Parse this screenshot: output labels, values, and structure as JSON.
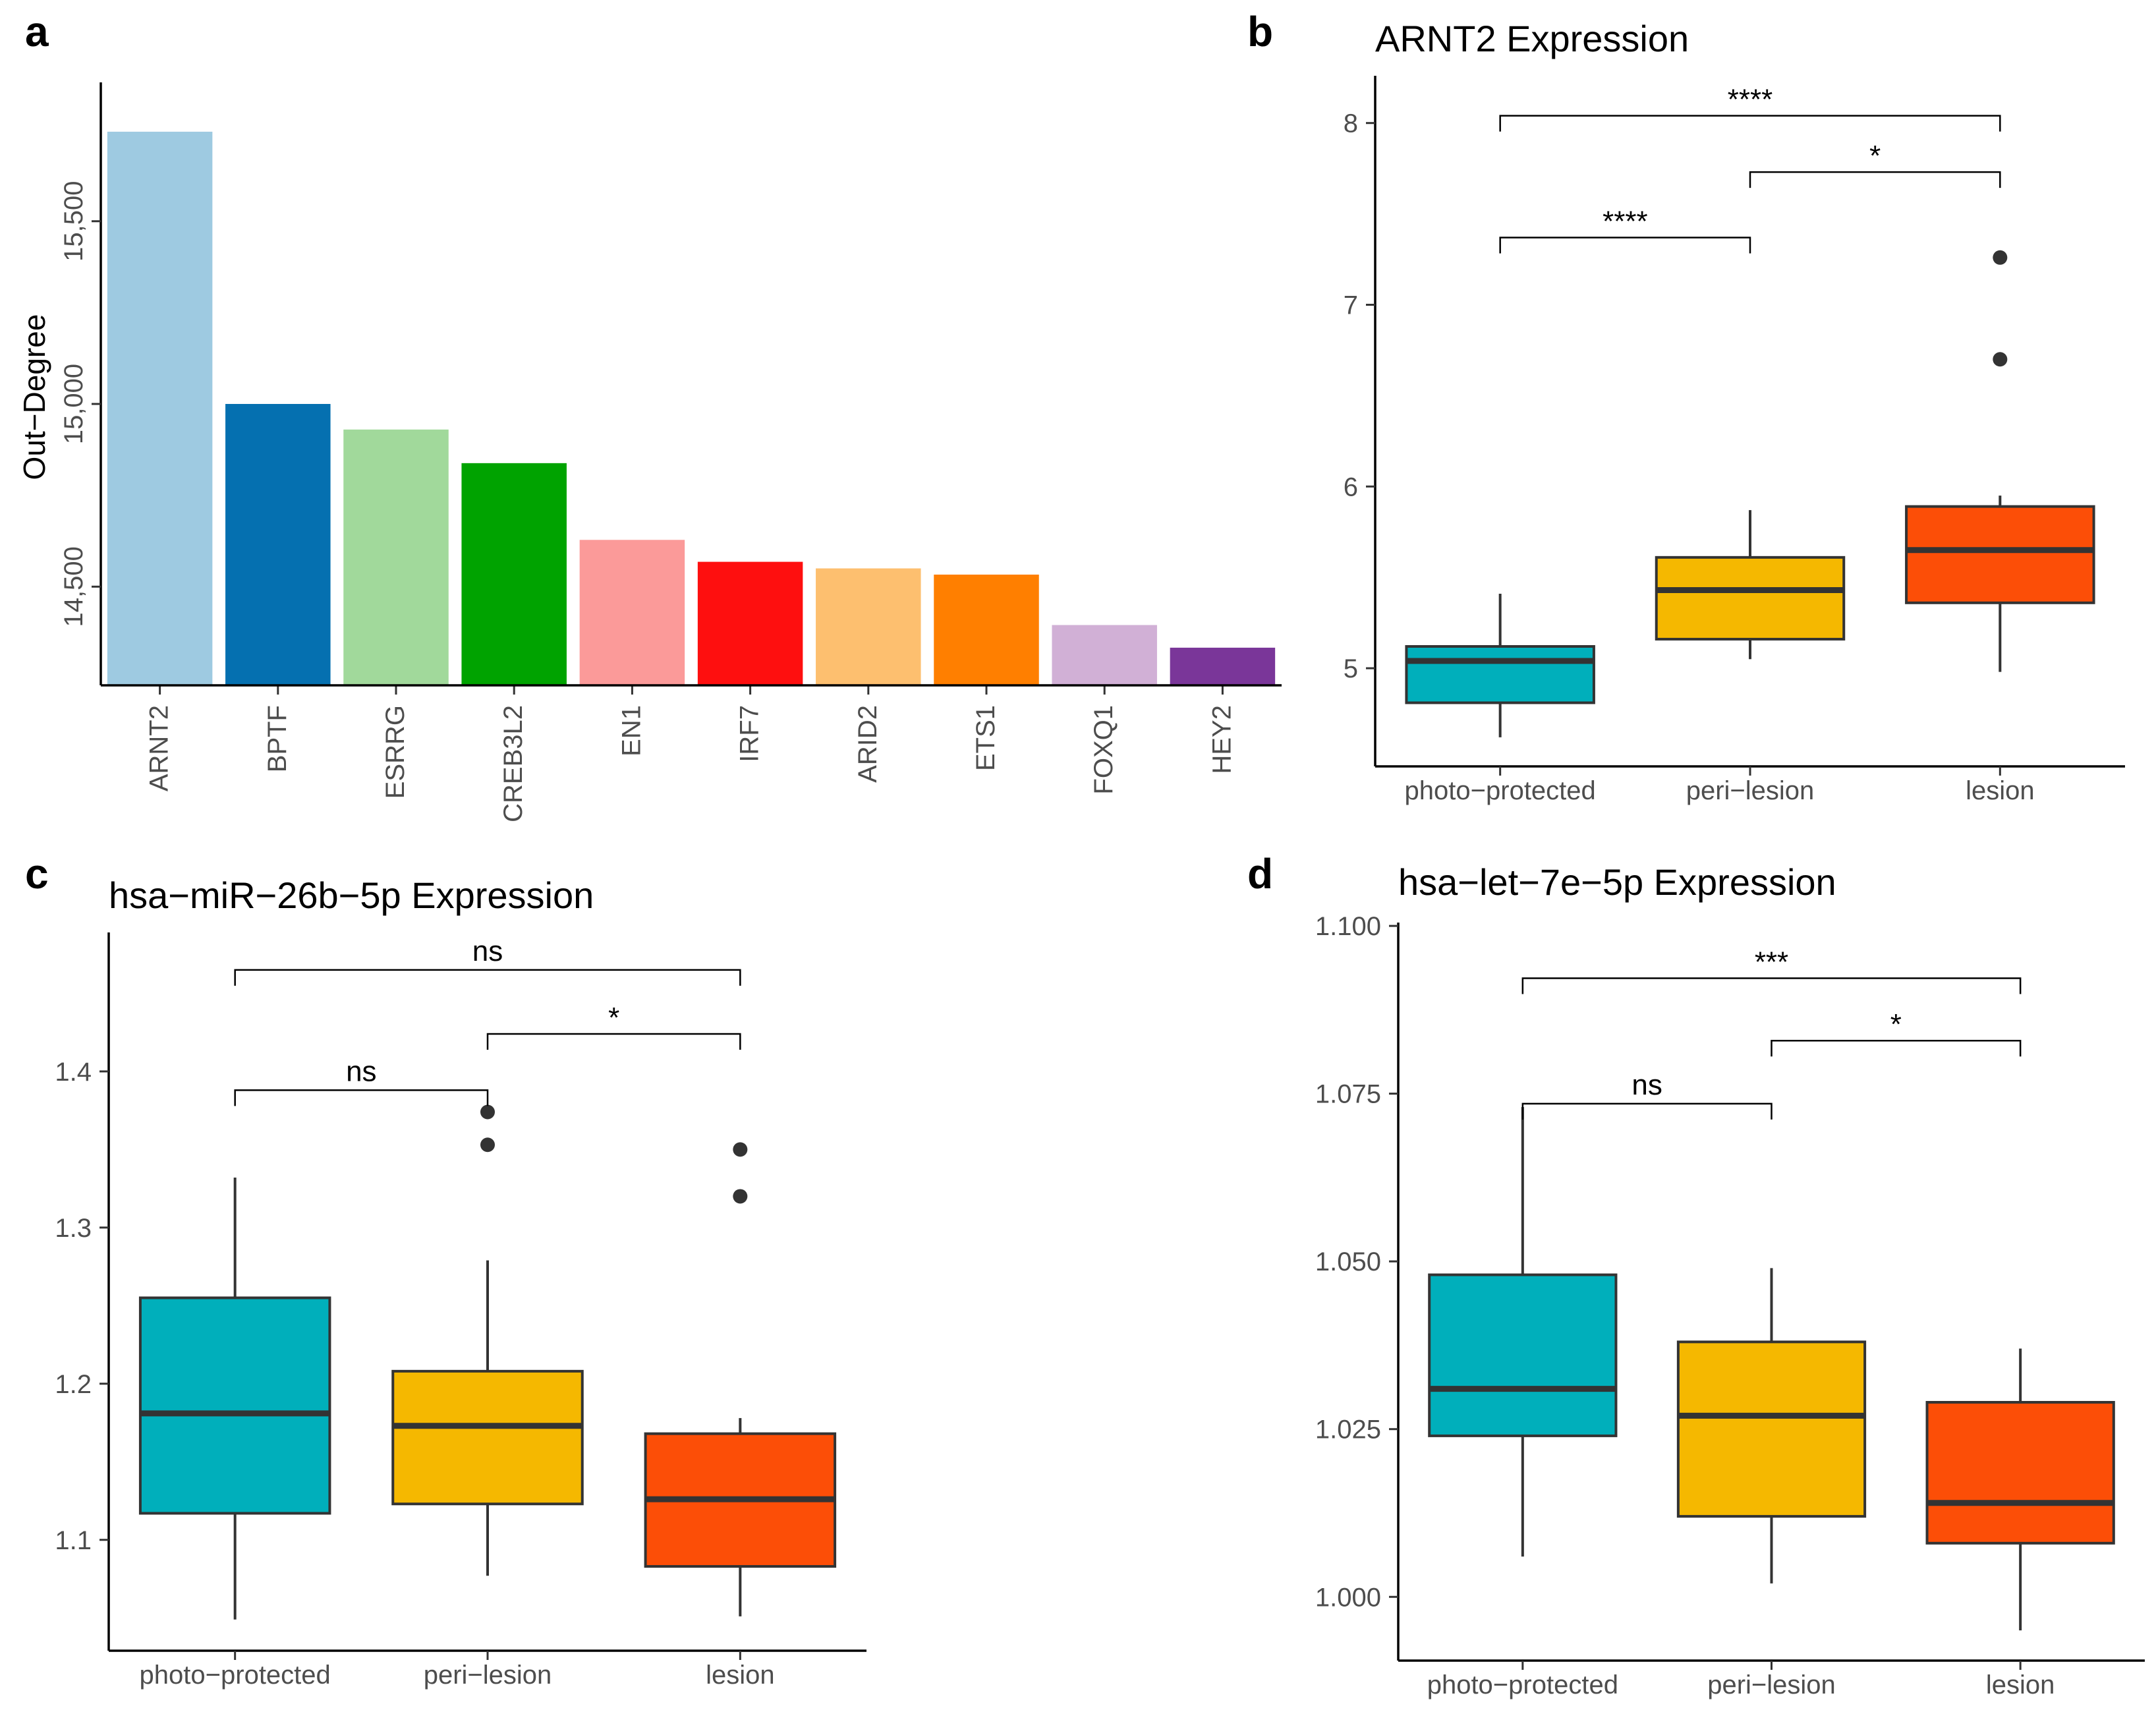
{
  "chart_data": [
    {
      "panel": "a",
      "type": "bar",
      "title": "",
      "xlabel": "",
      "ylabel": "Out−Degree",
      "categories": [
        "ARNT2",
        "BPTF",
        "ESRRG",
        "CREB3L2",
        "EN1",
        "IRF7",
        "ARID2",
        "ETS1",
        "FOXQ1",
        "HEY2"
      ],
      "values": [
        15745,
        15000,
        14930,
        14838,
        14628,
        14568,
        14550,
        14533,
        14395,
        14333
      ],
      "colors": [
        "#9ecae1",
        "#0570b0",
        "#a1d99b",
        "#00a300",
        "#fb9a99",
        "#fe0f0f",
        "#fdbf6f",
        "#ff7f00",
        "#d1b0d6",
        "#7a3699"
      ],
      "ylim": [
        14230,
        15880
      ],
      "yticks": [
        14500,
        15000,
        15500
      ],
      "ytick_labels": [
        "14,500",
        "15,000",
        "15,500"
      ]
    },
    {
      "panel": "b",
      "type": "boxplot",
      "title": "ARNT2 Expression",
      "categories": [
        "photo−protected",
        "peri−lesion",
        "lesion"
      ],
      "colors": [
        "#00afbb",
        "#f5b800",
        "#fc4e07"
      ],
      "ylim": [
        4.46,
        8.26
      ],
      "yticks": [
        5,
        6,
        7,
        8
      ],
      "ytick_labels": [
        "5",
        "6",
        "7",
        "8"
      ],
      "boxes": [
        {
          "q1": 4.81,
          "median": 5.04,
          "q3": 5.12,
          "low": 4.62,
          "high": 5.41,
          "outliers": []
        },
        {
          "q1": 5.16,
          "median": 5.43,
          "q3": 5.61,
          "low": 5.05,
          "high": 5.87,
          "outliers": []
        },
        {
          "q1": 5.36,
          "median": 5.65,
          "q3": 5.89,
          "low": 4.98,
          "high": 5.95,
          "outliers": [
            7.26,
            6.7
          ]
        }
      ],
      "comparisons": [
        {
          "from": 0,
          "to": 1,
          "level": 7.37,
          "label": "****"
        },
        {
          "from": 1,
          "to": 2,
          "level": 7.73,
          "label": "*"
        },
        {
          "from": 0,
          "to": 2,
          "level": 8.04,
          "label": "****"
        }
      ]
    },
    {
      "panel": "c",
      "type": "boxplot",
      "title": "hsa−miR−26b−5p Expression",
      "categories": [
        "photo−protected",
        "peri−lesion",
        "lesion"
      ],
      "colors": [
        "#00afbb",
        "#f5b800",
        "#fc4e07"
      ],
      "ylim": [
        1.029,
        1.489
      ],
      "yticks": [
        1.1,
        1.2,
        1.3,
        1.4
      ],
      "ytick_labels": [
        "1.1",
        "1.2",
        "1.3",
        "1.4"
      ],
      "boxes": [
        {
          "q1": 1.117,
          "median": 1.181,
          "q3": 1.255,
          "low": 1.049,
          "high": 1.332,
          "outliers": []
        },
        {
          "q1": 1.123,
          "median": 1.173,
          "q3": 1.208,
          "low": 1.077,
          "high": 1.279,
          "outliers": [
            1.374,
            1.353
          ]
        },
        {
          "q1": 1.083,
          "median": 1.126,
          "q3": 1.168,
          "low": 1.051,
          "high": 1.178,
          "outliers": [
            1.35,
            1.32
          ]
        }
      ],
      "comparisons": [
        {
          "from": 0,
          "to": 1,
          "level": 1.388,
          "label": "ns"
        },
        {
          "from": 1,
          "to": 2,
          "level": 1.424,
          "label": "*"
        },
        {
          "from": 0,
          "to": 2,
          "level": 1.465,
          "label": "ns"
        }
      ]
    },
    {
      "panel": "d",
      "type": "boxplot",
      "title": "hsa−let−7e−5p Expression",
      "categories": [
        "photo−protected",
        "peri−lesion",
        "lesion"
      ],
      "colors": [
        "#00afbb",
        "#f5b800",
        "#fc4e07"
      ],
      "ylim": [
        0.9905,
        1.1005
      ],
      "yticks": [
        1.0,
        1.025,
        1.05,
        1.075,
        1.1
      ],
      "ytick_labels": [
        "1.000",
        "1.025",
        "1.050",
        "1.075",
        "1.100"
      ],
      "boxes": [
        {
          "q1": 1.024,
          "median": 1.031,
          "q3": 1.048,
          "low": 1.006,
          "high": 1.073,
          "outliers": []
        },
        {
          "q1": 1.012,
          "median": 1.027,
          "q3": 1.038,
          "low": 1.002,
          "high": 1.049,
          "outliers": []
        },
        {
          "q1": 1.008,
          "median": 1.014,
          "q3": 1.029,
          "low": 0.995,
          "high": 1.037,
          "outliers": []
        }
      ],
      "comparisons": [
        {
          "from": 0,
          "to": 1,
          "level": 1.0735,
          "label": "ns"
        },
        {
          "from": 1,
          "to": 2,
          "level": 1.0829,
          "label": "*"
        },
        {
          "from": 0,
          "to": 2,
          "level": 1.0922,
          "label": "***"
        }
      ]
    }
  ]
}
